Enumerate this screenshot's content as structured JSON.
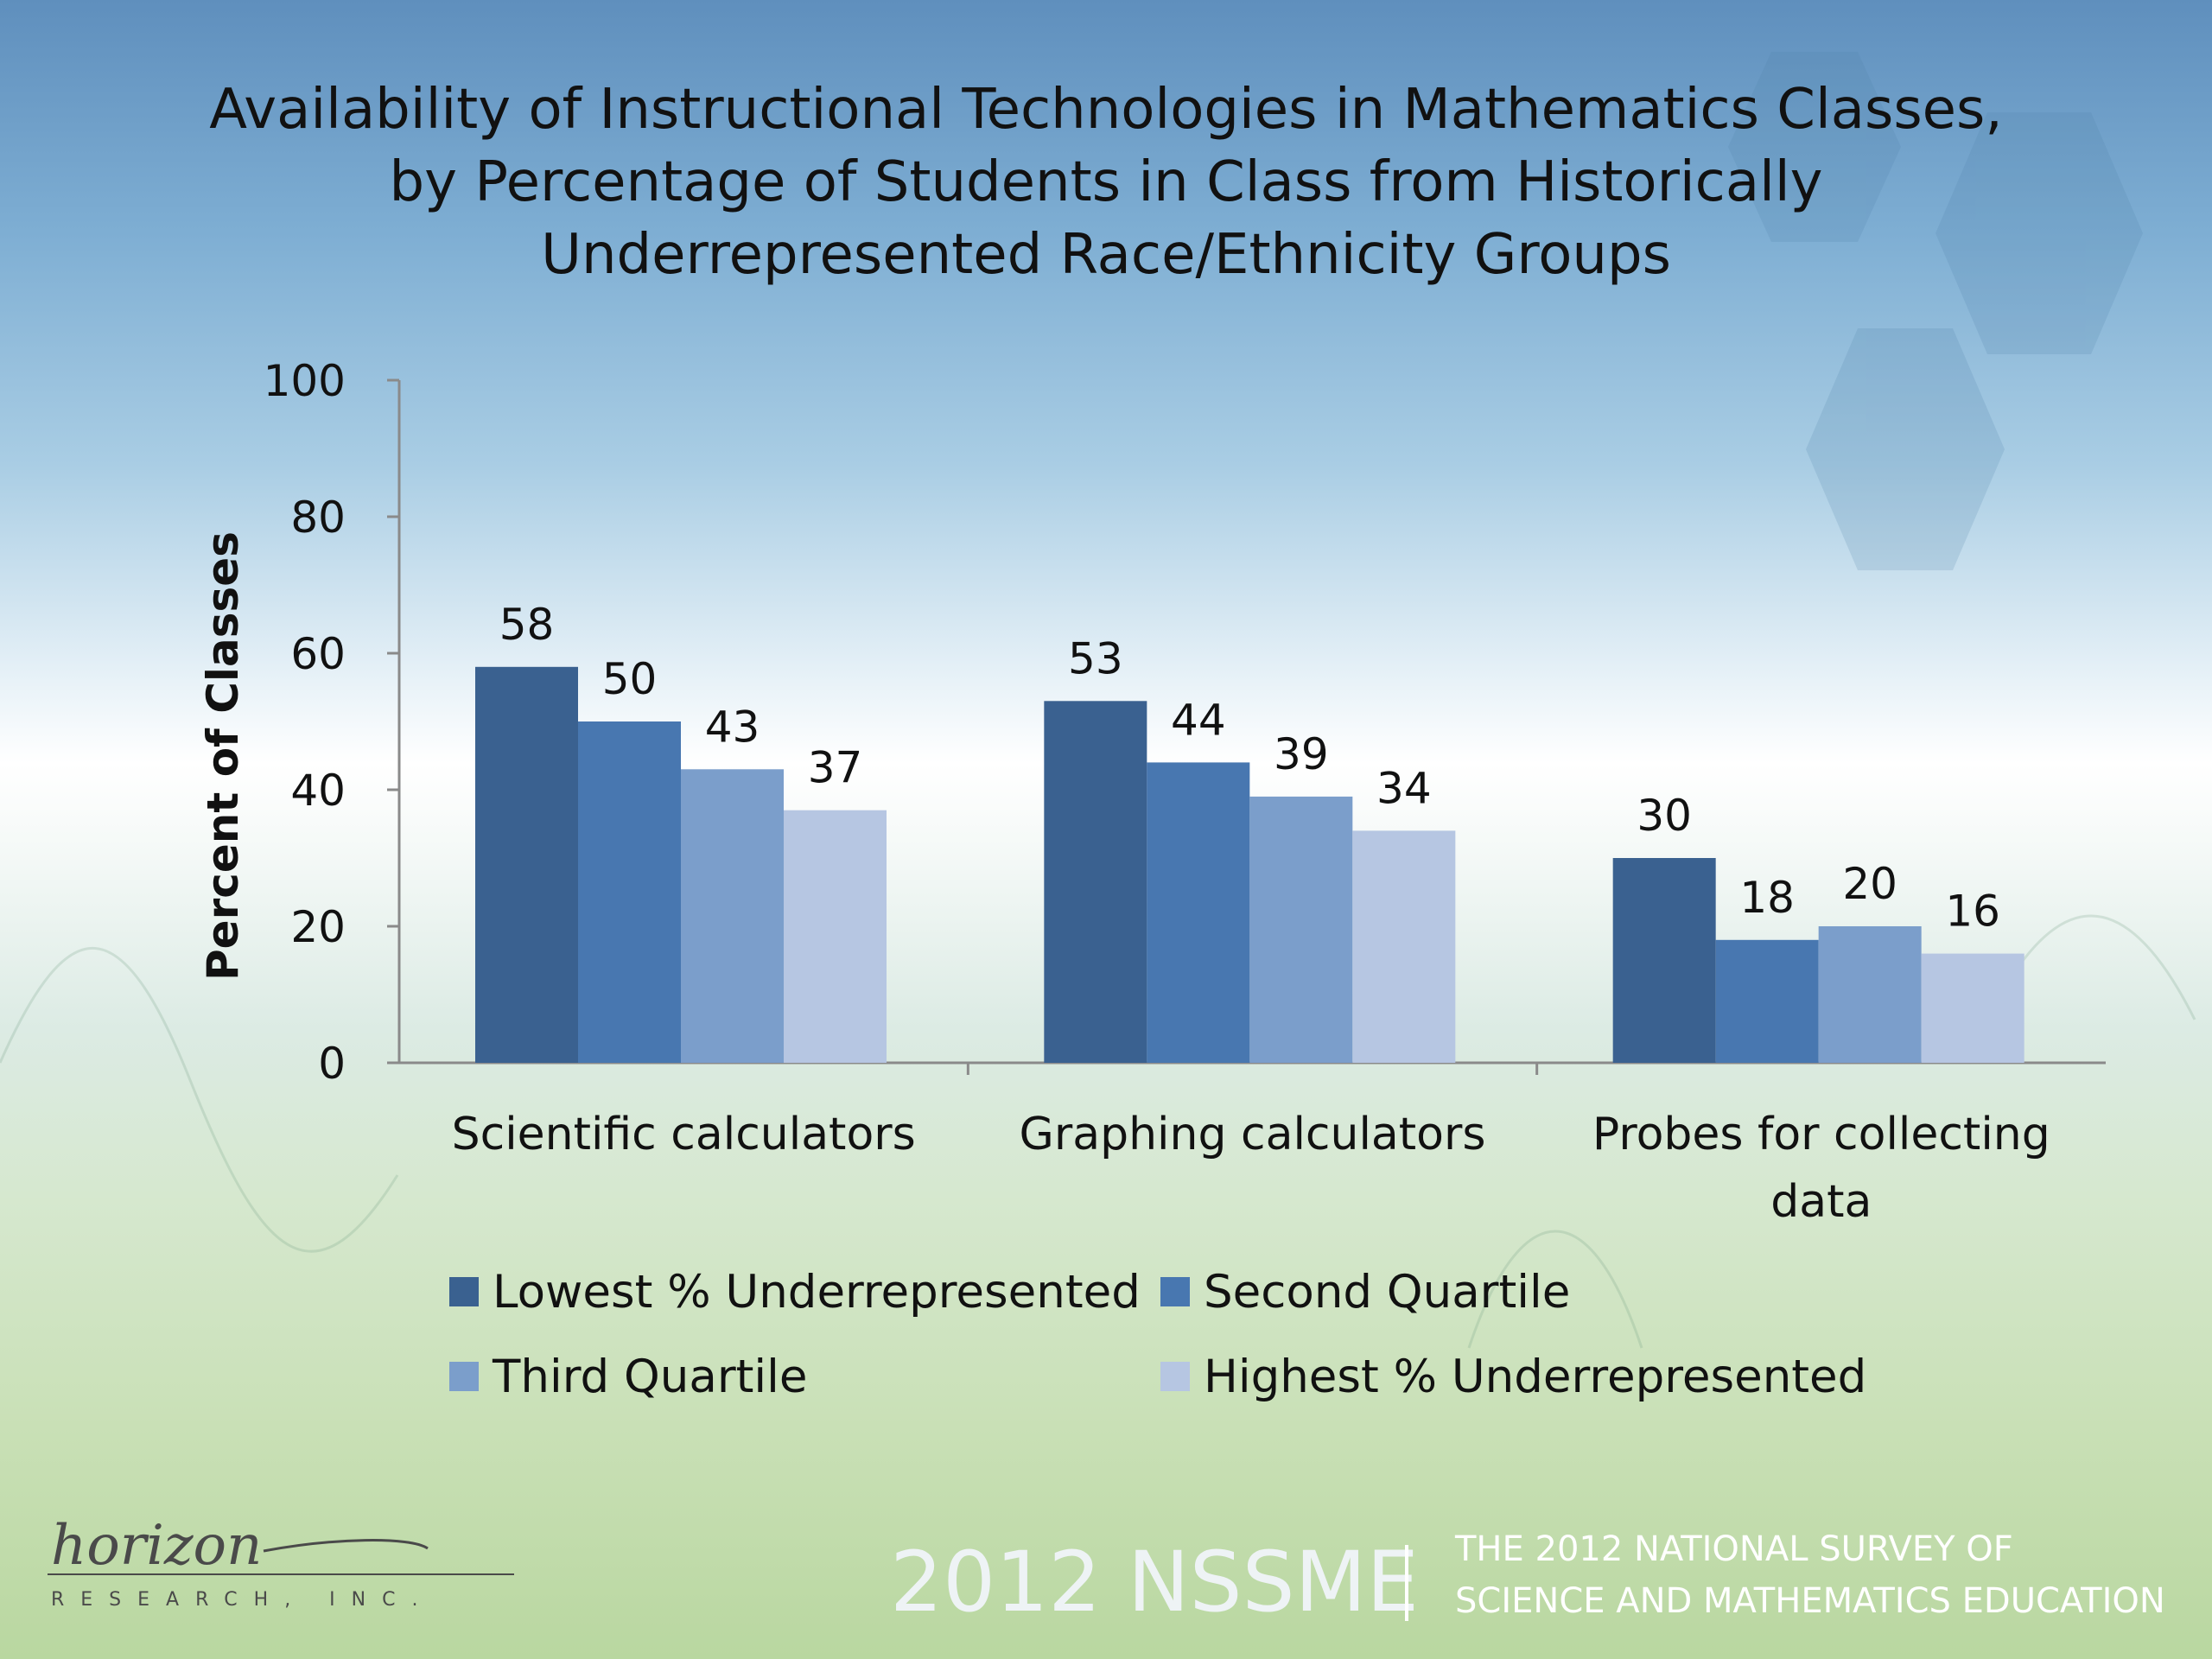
{
  "title_lines": [
    "Availability of Instructional Technologies in Mathematics Classes,",
    "by Percentage of Students in Class from Historically",
    "Underrepresented Race/Ethnicity Groups"
  ],
  "chart_data": {
    "type": "bar",
    "title": "Availability of Instructional Technologies in Mathematics Classes, by Percentage of Students in Class from Historically Underrepresented Race/Ethnicity Groups",
    "ylabel": "Percent of Classes",
    "xlabel": "",
    "ylim": [
      0,
      100
    ],
    "yticks": [
      0,
      20,
      40,
      60,
      80,
      100
    ],
    "grid": false,
    "legend_position": "bottom",
    "categories": [
      [
        "Scientific calculators"
      ],
      [
        "Graphing calculators"
      ],
      [
        "Probes for collecting",
        "data"
      ]
    ],
    "series": [
      {
        "name": "Lowest % Underrepresented",
        "color": "#3a6190",
        "values": [
          58,
          53,
          30
        ]
      },
      {
        "name": "Second Quartile",
        "color": "#4877b0",
        "values": [
          50,
          44,
          18
        ]
      },
      {
        "name": "Third Quartile",
        "color": "#7b9ecb",
        "values": [
          43,
          39,
          20
        ]
      },
      {
        "name": "Highest % Underrepresented",
        "color": "#b6c6e2",
        "values": [
          37,
          34,
          16
        ]
      }
    ]
  },
  "footer": {
    "nssme": "2012 NSSME",
    "survey_lines": [
      "THE 2012 NATIONAL SURVEY OF",
      "SCIENCE AND MATHEMATICS EDUCATION"
    ],
    "logo_script": "horizon",
    "logo_sub": "RESEARCH, INC."
  }
}
